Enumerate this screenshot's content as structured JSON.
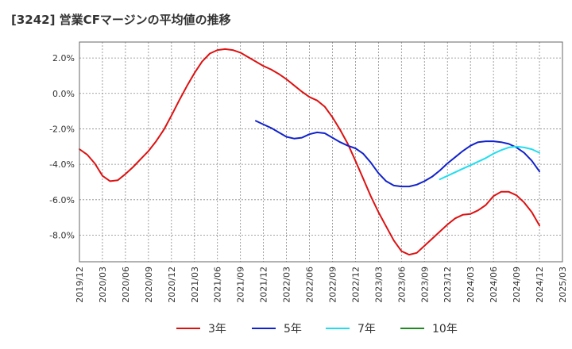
{
  "title": "[3242]  営業CFマージンの平均値の推移",
  "chart_data": {
    "type": "line",
    "title": "[3242]  営業CFマージンの平均値の推移",
    "xlabel": "",
    "ylabel": "",
    "x_ticks": [
      "2019/12",
      "2020/03",
      "2020/06",
      "2020/09",
      "2020/12",
      "2021/03",
      "2021/06",
      "2021/09",
      "2021/12",
      "2022/03",
      "2022/06",
      "2022/09",
      "2022/12",
      "2023/03",
      "2023/06",
      "2023/09",
      "2023/12",
      "2024/03",
      "2024/06",
      "2024/09",
      "2024/12",
      "2025/03"
    ],
    "y_ticks": [
      "2.0%",
      "0.0%",
      "-2.0%",
      "-4.0%",
      "-6.0%",
      "-8.0%"
    ],
    "y_tick_values": [
      2,
      0,
      -2,
      -4,
      -6,
      -8
    ],
    "ylim": [
      -9.5,
      2.9
    ],
    "xlim": [
      "2019/12",
      "2025/03"
    ],
    "grid": true,
    "legend_position": "bottom",
    "series": [
      {
        "name": "3年",
        "color": "#dd1111",
        "x": [
          "2019/12",
          "2020/01",
          "2020/02",
          "2020/03",
          "2020/04",
          "2020/05",
          "2020/06",
          "2020/07",
          "2020/08",
          "2020/09",
          "2020/10",
          "2020/11",
          "2020/12",
          "2021/01",
          "2021/02",
          "2021/03",
          "2021/04",
          "2021/05",
          "2021/06",
          "2021/07",
          "2021/08",
          "2021/09",
          "2021/10",
          "2021/11",
          "2021/12",
          "2022/01",
          "2022/02",
          "2022/03",
          "2022/04",
          "2022/05",
          "2022/06",
          "2022/07",
          "2022/08",
          "2022/09",
          "2022/10",
          "2022/11",
          "2022/12",
          "2023/01",
          "2023/02",
          "2023/03",
          "2023/04",
          "2023/05",
          "2023/06",
          "2023/07",
          "2023/08",
          "2023/09",
          "2023/10",
          "2023/11",
          "2023/12",
          "2024/01",
          "2024/02",
          "2024/03",
          "2024/04",
          "2024/05",
          "2024/06",
          "2024/07",
          "2024/08",
          "2024/09",
          "2024/10",
          "2024/11",
          "2024/12"
        ],
        "values": [
          -3.15,
          -3.45,
          -3.95,
          -4.65,
          -4.95,
          -4.9,
          -4.55,
          -4.15,
          -3.7,
          -3.25,
          -2.7,
          -2.05,
          -1.25,
          -0.4,
          0.4,
          1.15,
          1.8,
          2.25,
          2.45,
          2.5,
          2.45,
          2.3,
          2.05,
          1.8,
          1.55,
          1.35,
          1.1,
          0.8,
          0.45,
          0.1,
          -0.2,
          -0.4,
          -0.75,
          -1.35,
          -2.05,
          -2.85,
          -3.8,
          -4.8,
          -5.8,
          -6.7,
          -7.5,
          -8.3,
          -8.9,
          -9.1,
          -9.0,
          -8.6,
          -8.2,
          -7.8,
          -7.4,
          -7.05,
          -6.85,
          -6.8,
          -6.6,
          -6.3,
          -5.8,
          -5.55,
          -5.55,
          -5.75,
          -6.15,
          -6.7,
          -7.45
        ]
      },
      {
        "name": "5年",
        "color": "#1122cc",
        "x": [
          "2021/11",
          "2021/12",
          "2022/01",
          "2022/02",
          "2022/03",
          "2022/04",
          "2022/05",
          "2022/06",
          "2022/07",
          "2022/08",
          "2022/09",
          "2022/10",
          "2022/11",
          "2022/12",
          "2023/01",
          "2023/02",
          "2023/03",
          "2023/04",
          "2023/05",
          "2023/06",
          "2023/07",
          "2023/08",
          "2023/09",
          "2023/10",
          "2023/11",
          "2023/12",
          "2024/01",
          "2024/02",
          "2024/03",
          "2024/04",
          "2024/05",
          "2024/06",
          "2024/07",
          "2024/08",
          "2024/09",
          "2024/10",
          "2024/11",
          "2024/12"
        ],
        "values": [
          -1.55,
          -1.75,
          -1.95,
          -2.2,
          -2.45,
          -2.55,
          -2.5,
          -2.3,
          -2.2,
          -2.25,
          -2.5,
          -2.75,
          -2.95,
          -3.1,
          -3.4,
          -3.9,
          -4.5,
          -4.95,
          -5.2,
          -5.25,
          -5.25,
          -5.15,
          -4.95,
          -4.7,
          -4.35,
          -3.95,
          -3.6,
          -3.25,
          -2.95,
          -2.75,
          -2.7,
          -2.7,
          -2.75,
          -2.85,
          -3.05,
          -3.35,
          -3.8,
          -4.4
        ]
      },
      {
        "name": "7年",
        "color": "#22ddee",
        "x": [
          "2023/11",
          "2023/12",
          "2024/01",
          "2024/02",
          "2024/03",
          "2024/04",
          "2024/05",
          "2024/06",
          "2024/07",
          "2024/08",
          "2024/09",
          "2024/10",
          "2024/11",
          "2024/12"
        ],
        "values": [
          -4.85,
          -4.65,
          -4.45,
          -4.25,
          -4.05,
          -3.85,
          -3.65,
          -3.4,
          -3.2,
          -3.05,
          -3.0,
          -3.05,
          -3.15,
          -3.35
        ]
      },
      {
        "name": "10年",
        "color": "#228822",
        "x": [],
        "values": []
      }
    ]
  }
}
